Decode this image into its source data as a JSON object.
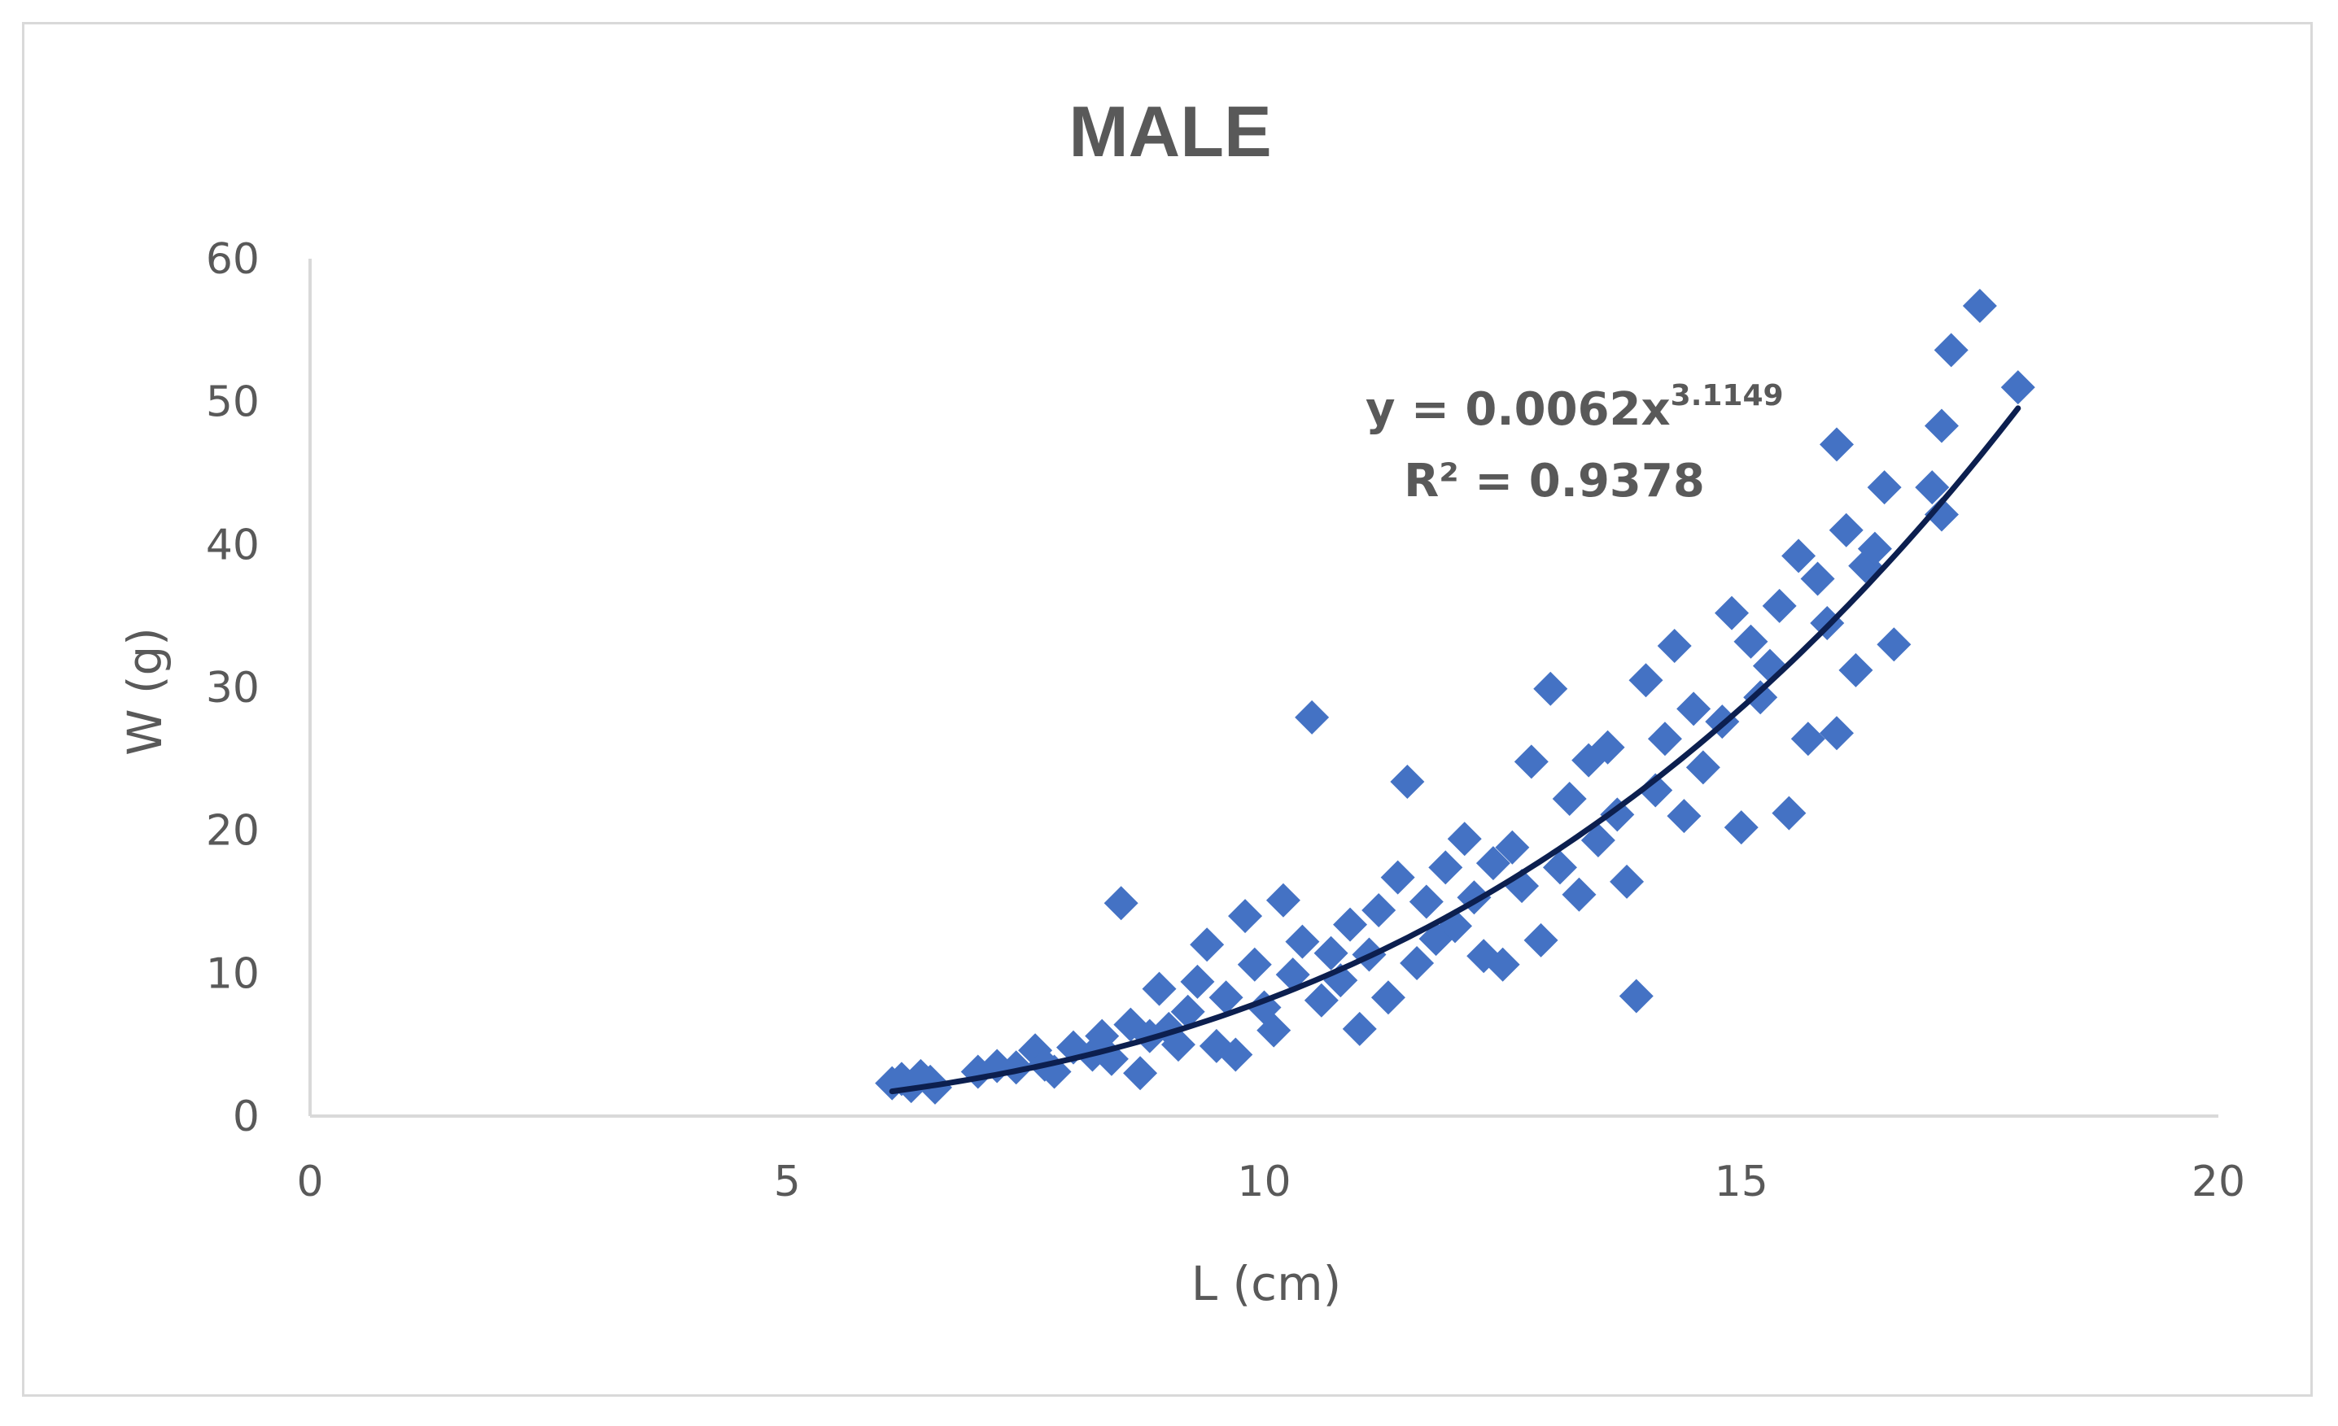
{
  "chart_data": {
    "type": "scatter",
    "title": "MALE",
    "xlabel": "L (cm)",
    "ylabel": "W (g)",
    "xlim": [
      0,
      20
    ],
    "ylim": [
      0,
      60
    ],
    "xticks": [
      "0",
      "5",
      "10",
      "15",
      "20"
    ],
    "yticks": [
      "0",
      "10",
      "20",
      "30",
      "40",
      "50",
      "60"
    ],
    "grid": false,
    "marker": "diamond",
    "color": "#4472c4",
    "trendline": {
      "type": "power",
      "a": 0.0062,
      "b": 3.1149,
      "color": "#0c1f4f",
      "equation_prefix": "y = 0.0062x",
      "equation_exponent": "3.1149",
      "r2_label": "R² = 0.9378"
    },
    "series": [
      {
        "name": "MALE",
        "points": [
          [
            6.1,
            2.3
          ],
          [
            6.2,
            2.6
          ],
          [
            6.3,
            2.1
          ],
          [
            6.4,
            2.8
          ],
          [
            6.5,
            2.4
          ],
          [
            6.55,
            2.0
          ],
          [
            7.0,
            3.1
          ],
          [
            7.2,
            3.5
          ],
          [
            7.4,
            3.4
          ],
          [
            7.6,
            4.6
          ],
          [
            7.7,
            3.6
          ],
          [
            7.8,
            3.1
          ],
          [
            8.0,
            4.8
          ],
          [
            8.2,
            4.3
          ],
          [
            8.3,
            5.6
          ],
          [
            8.4,
            4.0
          ],
          [
            8.5,
            14.9
          ],
          [
            8.6,
            6.4
          ],
          [
            8.7,
            3.0
          ],
          [
            8.8,
            5.6
          ],
          [
            8.9,
            8.9
          ],
          [
            9.0,
            6.1
          ],
          [
            9.1,
            5.0
          ],
          [
            9.2,
            7.3
          ],
          [
            9.3,
            9.4
          ],
          [
            9.4,
            12.0
          ],
          [
            9.5,
            4.9
          ],
          [
            9.6,
            8.3
          ],
          [
            9.7,
            4.3
          ],
          [
            9.8,
            14.0
          ],
          [
            9.9,
            10.6
          ],
          [
            10.0,
            7.6
          ],
          [
            10.1,
            6.0
          ],
          [
            10.2,
            15.1
          ],
          [
            10.3,
            9.9
          ],
          [
            10.4,
            12.2
          ],
          [
            10.5,
            27.9
          ],
          [
            10.6,
            8.1
          ],
          [
            10.7,
            11.4
          ],
          [
            10.8,
            9.5
          ],
          [
            10.9,
            13.4
          ],
          [
            11.0,
            6.1
          ],
          [
            11.1,
            11.3
          ],
          [
            11.2,
            14.4
          ],
          [
            11.3,
            8.3
          ],
          [
            11.4,
            16.7
          ],
          [
            11.5,
            23.4
          ],
          [
            11.6,
            10.7
          ],
          [
            11.7,
            15.0
          ],
          [
            11.8,
            12.4
          ],
          [
            11.9,
            17.4
          ],
          [
            12.0,
            13.3
          ],
          [
            12.1,
            19.4
          ],
          [
            12.2,
            15.3
          ],
          [
            12.3,
            11.2
          ],
          [
            12.4,
            17.7
          ],
          [
            12.5,
            10.6
          ],
          [
            12.6,
            18.8
          ],
          [
            12.7,
            16.1
          ],
          [
            12.8,
            24.8
          ],
          [
            12.9,
            12.3
          ],
          [
            13.0,
            29.9
          ],
          [
            13.1,
            17.4
          ],
          [
            13.2,
            22.2
          ],
          [
            13.3,
            15.5
          ],
          [
            13.4,
            24.9
          ],
          [
            13.5,
            19.3
          ],
          [
            13.6,
            25.8
          ],
          [
            13.7,
            21.1
          ],
          [
            13.8,
            16.4
          ],
          [
            13.9,
            8.4
          ],
          [
            14.0,
            30.5
          ],
          [
            14.1,
            22.8
          ],
          [
            14.2,
            26.4
          ],
          [
            14.3,
            32.9
          ],
          [
            14.4,
            21.0
          ],
          [
            14.5,
            28.5
          ],
          [
            14.6,
            24.4
          ],
          [
            14.8,
            27.6
          ],
          [
            14.9,
            35.2
          ],
          [
            15.0,
            20.2
          ],
          [
            15.1,
            33.2
          ],
          [
            15.2,
            29.3
          ],
          [
            15.3,
            31.5
          ],
          [
            15.4,
            35.7
          ],
          [
            15.5,
            21.2
          ],
          [
            15.6,
            39.2
          ],
          [
            15.7,
            26.4
          ],
          [
            15.8,
            37.6
          ],
          [
            15.9,
            34.5
          ],
          [
            16.0,
            47.0
          ],
          [
            16.0,
            26.8
          ],
          [
            16.1,
            41.0
          ],
          [
            16.2,
            31.2
          ],
          [
            16.3,
            38.5
          ],
          [
            16.4,
            39.7
          ],
          [
            16.5,
            44.0
          ],
          [
            16.6,
            33.0
          ],
          [
            17.0,
            44.0
          ],
          [
            17.1,
            48.3
          ],
          [
            17.1,
            42.1
          ],
          [
            17.2,
            53.6
          ],
          [
            17.5,
            56.7
          ],
          [
            17.9,
            51.0
          ]
        ]
      }
    ]
  }
}
